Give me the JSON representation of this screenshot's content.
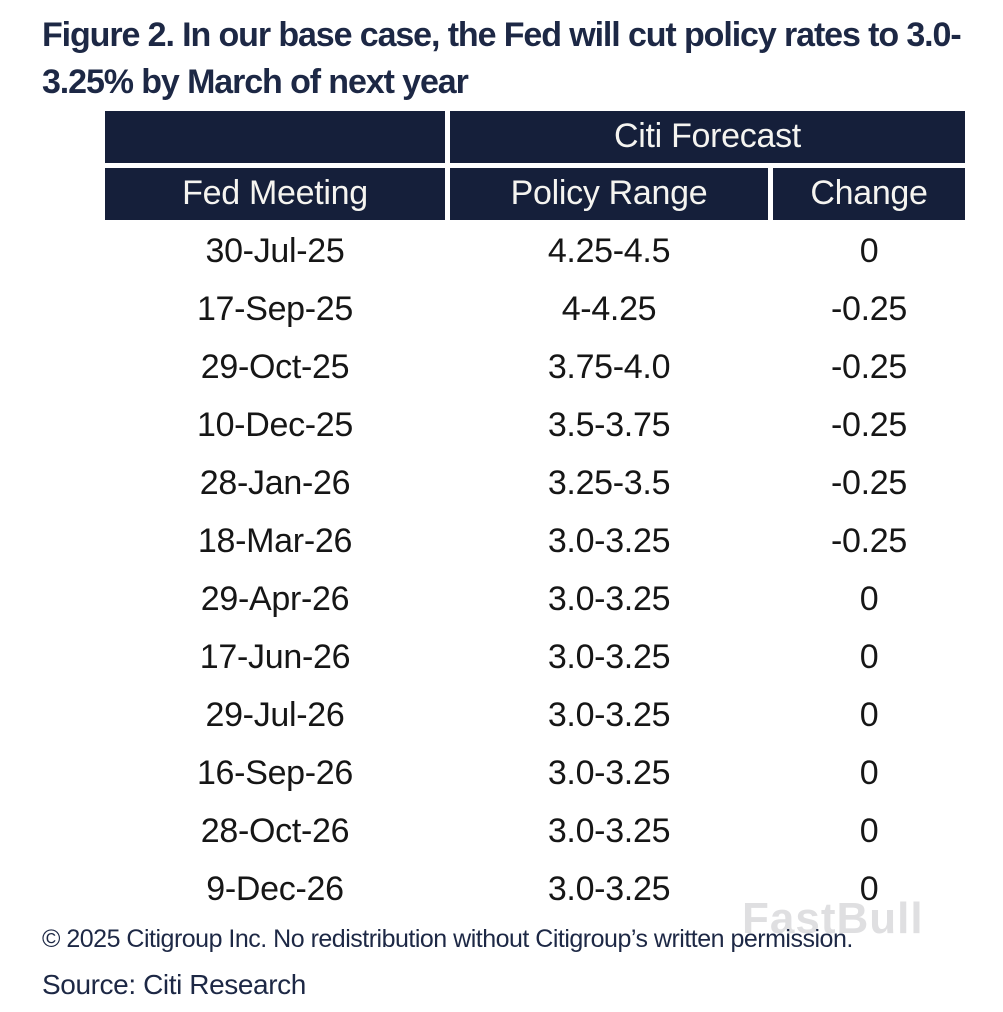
{
  "figure": {
    "title": "Figure 2. In our base case, the Fed will cut policy rates to 3.0-3.25% by March of next year"
  },
  "table": {
    "group_header": "Citi Forecast",
    "columns": [
      "Fed Meeting",
      "Policy Range",
      "Change"
    ],
    "rows": [
      [
        "30-Jul-25",
        "4.25-4.5",
        "0"
      ],
      [
        "17-Sep-25",
        "4-4.25",
        "-0.25"
      ],
      [
        "29-Oct-25",
        "3.75-4.0",
        "-0.25"
      ],
      [
        "10-Dec-25",
        "3.5-3.75",
        "-0.25"
      ],
      [
        "28-Jan-26",
        "3.25-3.5",
        "-0.25"
      ],
      [
        "18-Mar-26",
        "3.0-3.25",
        "-0.25"
      ],
      [
        "29-Apr-26",
        "3.0-3.25",
        "0"
      ],
      [
        "17-Jun-26",
        "3.0-3.25",
        "0"
      ],
      [
        "29-Jul-26",
        "3.0-3.25",
        "0"
      ],
      [
        "16-Sep-26",
        "3.0-3.25",
        "0"
      ],
      [
        "28-Oct-26",
        "3.0-3.25",
        "0"
      ],
      [
        "9-Dec-26",
        "3.0-3.25",
        "0"
      ]
    ]
  },
  "footer": {
    "copyright": "© 2025 Citigroup Inc. No redistribution without Citigroup’s written permission.",
    "source": "Source: Citi Research"
  },
  "watermark": "FastBull",
  "colors": {
    "header_bg": "#151f3a",
    "title_text": "#1d2845",
    "body_text": "#161616",
    "footer_text": "#1d2845",
    "watermark": "#dcdcde"
  }
}
